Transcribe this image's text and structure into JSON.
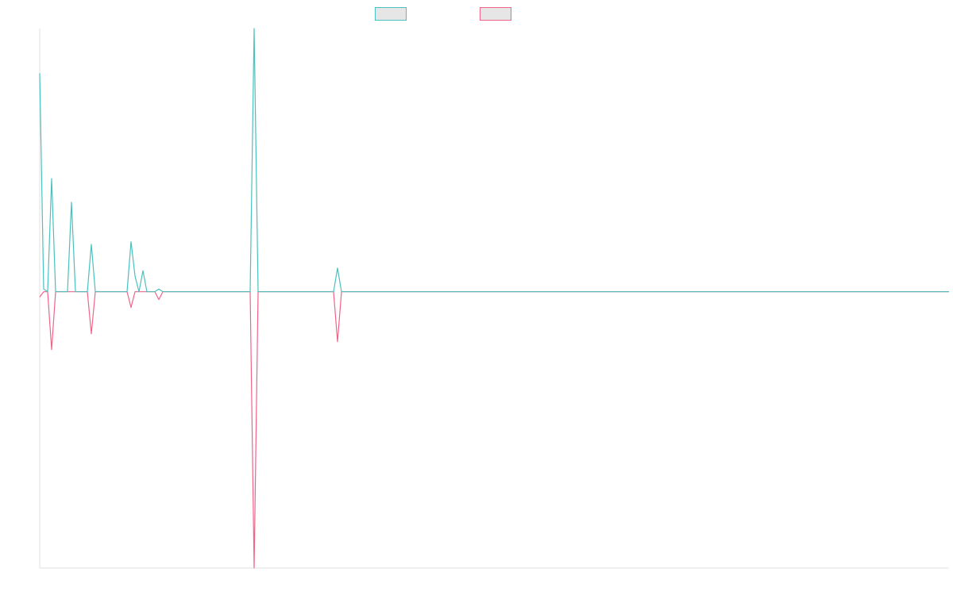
{
  "chart_data": {
    "type": "line",
    "ylim": [
      -1.05,
      1
    ],
    "series": [
      {
        "color": "#4bc0c0",
        "values": [
          0.83,
          0.01,
          0,
          0.43,
          0,
          0,
          0,
          0,
          0.34,
          0,
          0,
          0,
          0,
          0.18,
          0,
          0,
          0,
          0,
          0,
          0,
          0,
          0,
          0,
          0.19,
          0.06,
          0,
          0.08,
          0,
          0,
          0,
          0.01,
          0,
          0,
          0,
          0,
          0,
          0,
          0,
          0,
          0,
          0,
          0,
          0,
          0,
          0,
          0,
          0,
          0,
          0,
          0,
          0,
          0,
          0,
          0,
          1,
          0,
          0,
          0,
          0,
          0,
          0,
          0,
          0,
          0,
          0,
          0,
          0,
          0,
          0,
          0,
          0,
          0,
          0,
          0,
          0,
          0.09,
          0,
          0,
          0,
          0,
          0,
          0,
          0,
          0,
          0,
          0,
          0,
          0,
          0,
          0,
          0,
          0,
          0,
          0,
          0,
          0,
          0,
          0,
          0,
          0,
          0,
          0,
          0,
          0,
          0,
          0,
          0,
          0,
          0,
          0,
          0,
          0,
          0,
          0,
          0,
          0,
          0,
          0,
          0,
          0,
          0,
          0,
          0,
          0,
          0,
          0,
          0,
          0,
          0,
          0,
          0,
          0,
          0,
          0,
          0,
          0,
          0,
          0,
          0,
          0,
          0,
          0,
          0,
          0,
          0,
          0,
          0,
          0,
          0,
          0,
          0,
          0,
          0,
          0,
          0,
          0,
          0,
          0,
          0,
          0,
          0,
          0,
          0,
          0,
          0,
          0,
          0,
          0,
          0,
          0,
          0,
          0,
          0,
          0,
          0,
          0,
          0,
          0,
          0,
          0,
          0,
          0,
          0,
          0,
          0,
          0,
          0,
          0,
          0,
          0,
          0,
          0,
          0,
          0,
          0,
          0,
          0,
          0,
          0,
          0,
          0,
          0,
          0,
          0,
          0,
          0,
          0,
          0,
          0,
          0,
          0,
          0,
          0,
          0,
          0,
          0,
          0,
          0,
          0,
          0,
          0,
          0,
          0,
          0,
          0,
          0,
          0,
          0,
          0,
          0
        ]
      },
      {
        "color": "#f0648a",
        "values": [
          -0.02,
          0,
          0,
          -0.22,
          0,
          0,
          0,
          0,
          0,
          0,
          0,
          0,
          0,
          -0.16,
          0,
          0,
          0,
          0,
          0,
          0,
          0,
          0,
          0,
          -0.06,
          0,
          0,
          0,
          0,
          0,
          0,
          -0.03,
          0,
          0,
          0,
          0,
          0,
          0,
          0,
          0,
          0,
          0,
          0,
          0,
          0,
          0,
          0,
          0,
          0,
          0,
          0,
          0,
          0,
          0,
          0,
          -1.05,
          0,
          0,
          0,
          0,
          0,
          0,
          0,
          0,
          0,
          0,
          0,
          0,
          0,
          0,
          0,
          0,
          0,
          0,
          0,
          0,
          -0.19,
          0,
          0,
          0,
          0,
          0,
          0,
          0,
          0,
          0,
          0,
          0,
          0,
          0,
          0,
          0,
          0,
          0,
          0,
          0,
          0,
          0,
          0,
          0,
          0,
          0,
          0,
          0,
          0,
          0,
          0,
          0,
          0,
          0,
          0,
          0,
          0,
          0,
          0,
          0,
          0,
          0,
          0,
          0,
          0,
          0,
          0,
          0,
          0,
          0,
          0,
          0,
          0,
          0,
          0,
          0,
          0,
          0,
          0,
          0,
          0,
          0,
          0,
          0,
          0,
          0,
          0,
          0,
          0,
          0,
          0,
          0,
          0,
          0,
          0,
          0,
          0,
          0,
          0,
          0,
          0,
          0,
          0,
          0,
          0,
          0,
          0,
          0,
          0,
          0,
          0,
          0,
          0,
          0,
          0,
          0,
          0,
          0,
          0,
          0,
          0,
          0,
          0,
          0,
          0,
          0,
          0,
          0,
          0,
          0,
          0,
          0,
          0,
          0,
          0,
          0,
          0,
          0,
          0,
          0,
          0,
          0,
          0,
          0,
          0,
          0,
          0,
          0,
          0,
          0,
          0,
          0,
          0,
          0,
          0,
          0,
          0,
          0,
          0,
          0,
          0,
          0,
          0,
          0,
          0,
          0,
          0,
          0,
          0,
          0,
          0,
          0,
          0,
          0,
          0
        ]
      }
    ]
  }
}
